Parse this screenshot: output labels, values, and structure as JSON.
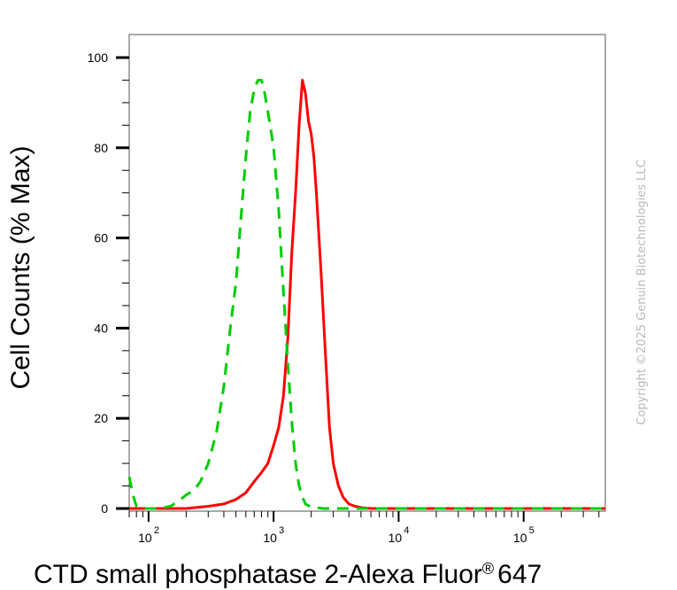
{
  "chart_data": {
    "type": "line",
    "xlabel": "CTD small phosphatase 2-Alexa Fluor",
    "xlabel_suffix": "647",
    "xlabel_mark": "®",
    "ylabel": "Cell Counts (% Max)",
    "x_scale": "log",
    "xlim": [
      70,
      450000
    ],
    "ylim": [
      0,
      100
    ],
    "yticks": [
      0,
      20,
      40,
      60,
      80,
      100
    ],
    "ytick_labels": [
      "0",
      "20",
      "40",
      "60",
      "80",
      "100"
    ],
    "xticks": [
      100,
      1000,
      10000,
      100000
    ],
    "xtick_bases": [
      "10",
      "10",
      "10",
      "10"
    ],
    "xtick_exponents": [
      "2",
      "3",
      "4",
      "5"
    ],
    "grid": false,
    "legend": "none",
    "series": [
      {
        "style": "solid",
        "color": "#ff0000",
        "x": [
          70,
          120,
          200,
          300,
          400,
          500,
          600,
          700,
          800,
          900,
          1000,
          1100,
          1200,
          1300,
          1400,
          1500,
          1600,
          1700,
          1800,
          1900,
          2000,
          2100,
          2200,
          2400,
          2600,
          2800,
          3000,
          3300,
          3600,
          4000,
          4500,
          5000,
          6000,
          10000,
          50000,
          200000,
          450000
        ],
        "y": [
          0,
          0,
          0,
          0.5,
          1,
          2,
          3.5,
          6,
          8,
          10,
          14,
          18,
          25,
          38,
          57,
          70,
          85,
          95,
          92,
          86,
          83,
          78,
          70,
          52,
          34,
          18,
          10,
          5,
          2.5,
          1,
          0.5,
          0.2,
          0,
          0,
          0,
          0,
          0
        ]
      },
      {
        "style": "dashed",
        "color": "#00cc00",
        "x": [
          70,
          75,
          80,
          90,
          100,
          120,
          150,
          180,
          200,
          230,
          260,
          300,
          350,
          400,
          450,
          500,
          550,
          600,
          650,
          700,
          750,
          800,
          850,
          900,
          950,
          1000,
          1100,
          1200,
          1300,
          1400,
          1500,
          1600,
          1700,
          1800,
          2000,
          2500,
          3000,
          5000,
          10000,
          50000,
          200000,
          450000
        ],
        "y": [
          7,
          3,
          0.5,
          0,
          0,
          0,
          0.5,
          2,
          3,
          4,
          6,
          10,
          17,
          27,
          40,
          50,
          65,
          78,
          88,
          93,
          95,
          95,
          92,
          88,
          84,
          80,
          66,
          48,
          32,
          19,
          10,
          5,
          2.5,
          1,
          0.3,
          0,
          0,
          0,
          0,
          0,
          0,
          0
        ]
      }
    ]
  },
  "watermark": "Copyright ©2025 Genuin Biotechnologies LLC"
}
